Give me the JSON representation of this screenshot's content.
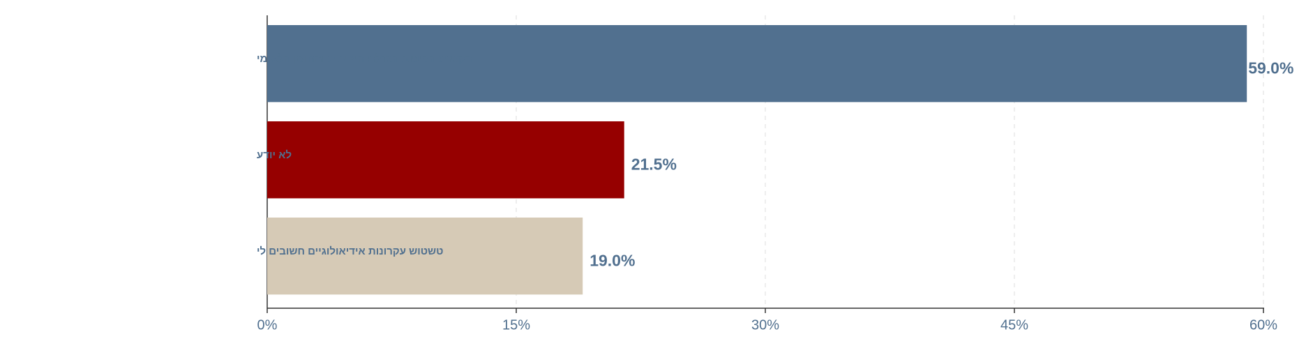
{
  "chart_data": {
    "type": "bar",
    "orientation": "horizontal",
    "categories": [
      "הקטנת הקיטוב הגדלת היציבות והחוסן הלאומי",
      "לא יודע",
      "טשטוש עקרונות אידיאולוגיים חשובים לי"
    ],
    "values": [
      59.0,
      21.5,
      19.0
    ],
    "value_labels": [
      "59.0%",
      "21.5%",
      "19.0%"
    ],
    "colors": [
      "#51708f",
      "#960000",
      "#d6cab6"
    ],
    "xlim": [
      0,
      60
    ],
    "xticks": [
      {
        "value": 0,
        "label": "0%"
      },
      {
        "value": 15,
        "label": "15%"
      },
      {
        "value": 30,
        "label": "30%"
      },
      {
        "value": 45,
        "label": "45%"
      },
      {
        "value": 60,
        "label": "60%"
      }
    ],
    "grid": true
  }
}
